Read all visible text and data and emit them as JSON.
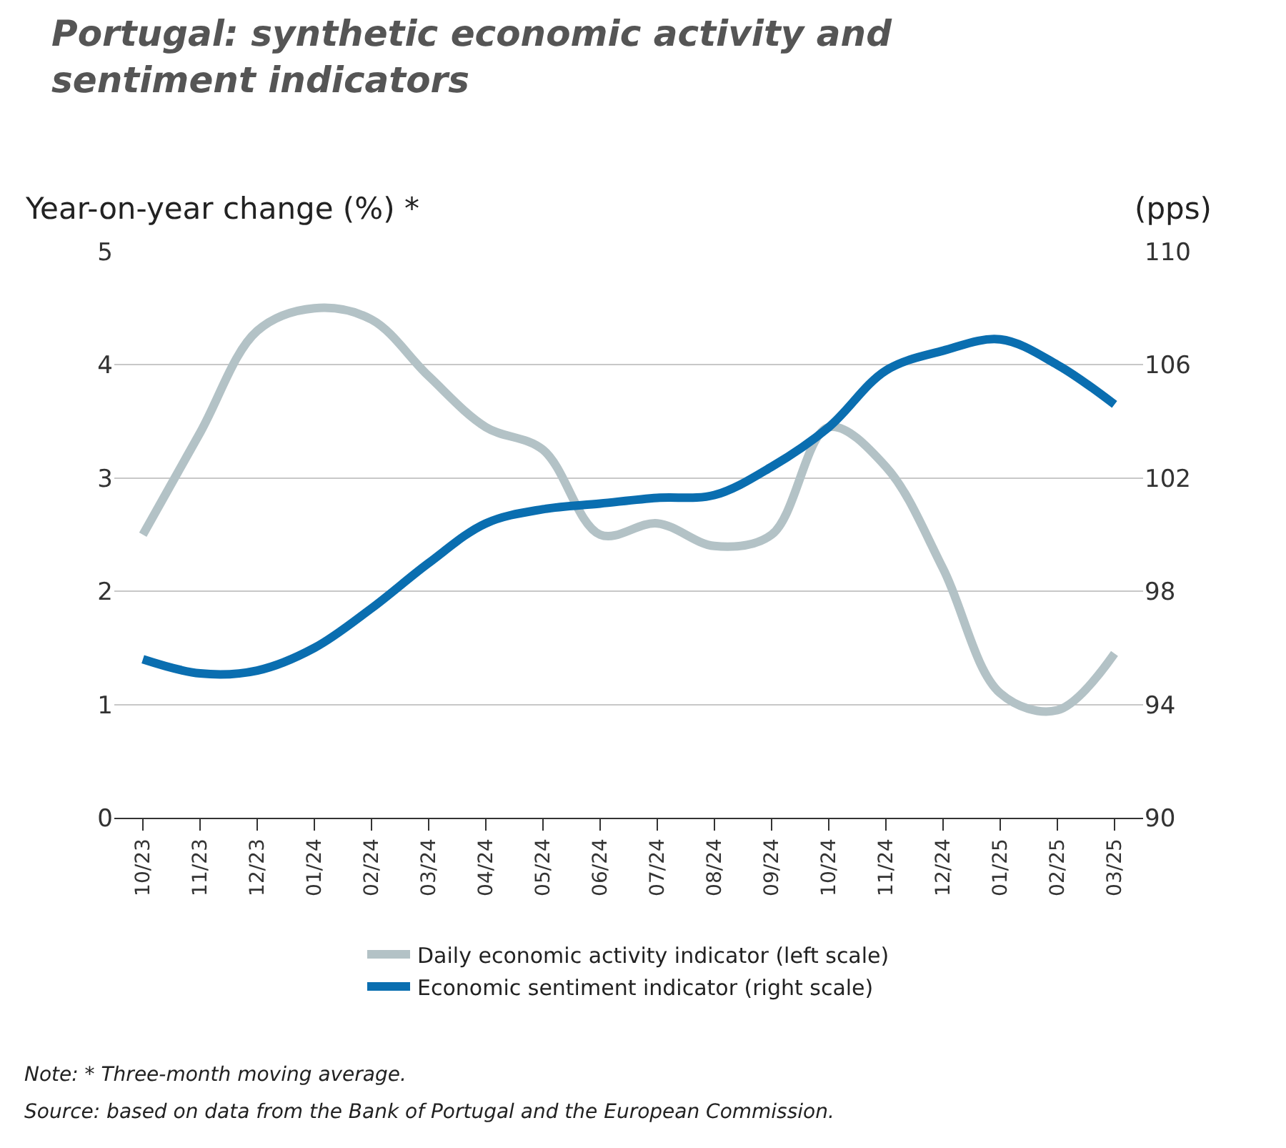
{
  "chart_data": {
    "type": "line",
    "title": "Portugal: synthetic economic activity and sentiment indicators",
    "ylabel": "Year-on-year change (%) *",
    "y2label": "(pps)",
    "categories": [
      "10/23",
      "11/23",
      "12/23",
      "01/24",
      "02/24",
      "03/24",
      "04/24",
      "05/24",
      "06/24",
      "07/24",
      "08/24",
      "09/24",
      "10/24",
      "11/24",
      "12/24",
      "01/25",
      "02/25",
      "03/25"
    ],
    "series": [
      {
        "name": "Daily economic activity indicator (left scale)",
        "color": "#b3c2c6",
        "values": [
          2.5,
          3.4,
          4.3,
          4.5,
          4.4,
          3.9,
          3.45,
          3.25,
          2.5,
          2.6,
          2.4,
          2.5,
          3.45,
          3.1,
          2.2,
          1.1,
          0.95,
          1.45
        ]
      },
      {
        "name": "Economic sentiment indicator (right scale)",
        "color": "#0a6eb0",
        "axis": "y2",
        "values": [
          95.6,
          95.1,
          95.2,
          96.0,
          97.4,
          99.0,
          100.4,
          100.9,
          101.1,
          101.3,
          101.4,
          102.4,
          103.8,
          105.8,
          106.5,
          106.9,
          106.0,
          104.6
        ]
      }
    ],
    "ylim": [
      0,
      5
    ],
    "yticks": [
      0,
      1,
      2,
      3,
      4,
      5
    ],
    "y2lim": [
      90,
      110
    ],
    "y2ticks": [
      90,
      94,
      98,
      102,
      106,
      110
    ],
    "grid": "y",
    "legend": "bottom",
    "line_style": "solid",
    "marker": "none",
    "annotations": [
      "Note: * Three-month moving average.",
      "Source: based on data from the Bank of Portugal and the European Commission."
    ]
  }
}
